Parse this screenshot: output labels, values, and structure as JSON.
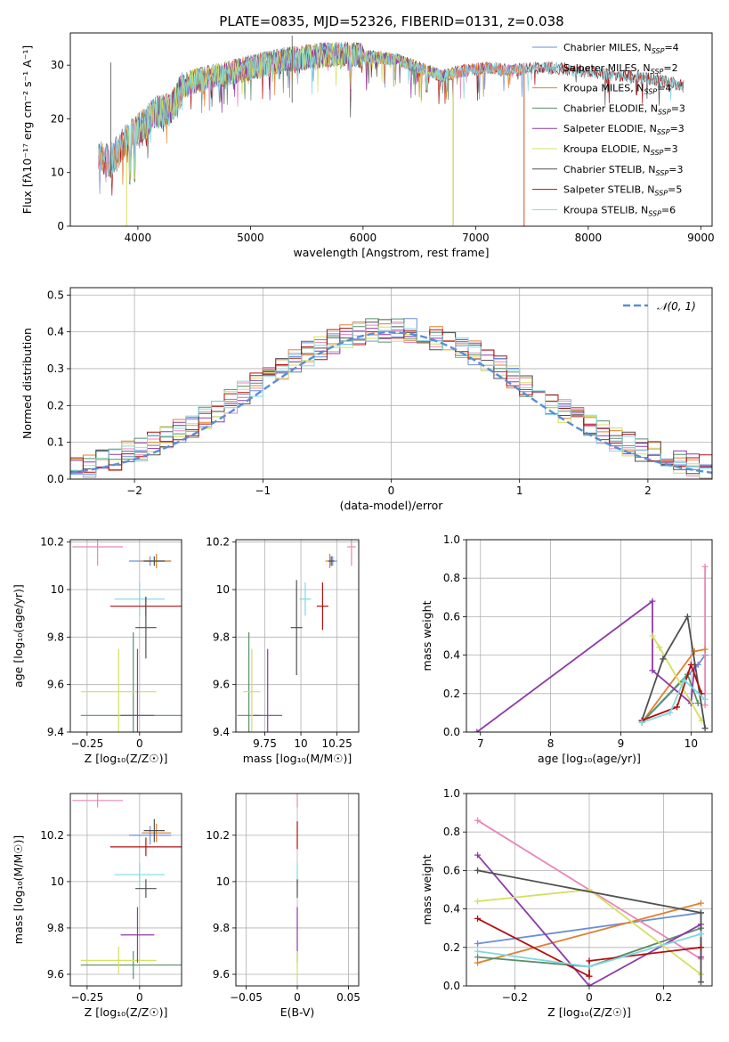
{
  "title": "PLATE=0835, MJD=52326, FIBERID=0131, z=0.038",
  "chart_data": [
    {
      "id": "spectrum",
      "type": "line",
      "xlabel": "wavelength [Angstrom, rest frame]",
      "ylabel": "Flux [fλ10⁻¹⁷ erg cm⁻² s⁻¹ A⁻¹]",
      "xlim": [
        3400,
        9100
      ],
      "ylim": [
        0,
        36
      ],
      "xticks": [
        4000,
        5000,
        6000,
        7000,
        8000,
        9000
      ],
      "yticks": [
        0,
        10,
        20,
        30
      ],
      "grid": false,
      "legend": "top-right",
      "series": [
        {
          "name": "Chabrier MILES, N_SSP=4",
          "label_main": "Chabrier MILES, N",
          "label_sub": "SSP",
          "label_end": "=4",
          "color": "#6a8fd6",
          "range": [
            3650,
            7450
          ]
        },
        {
          "name": "Salpeter MILES, N_SSP=2",
          "label_main": "Salpeter MILES, N",
          "label_sub": "SSP",
          "label_end": "=2",
          "color": "#e887b8",
          "range": [
            3650,
            7450
          ]
        },
        {
          "name": "Kroupa MILES, N_SSP=4",
          "label_main": "Kroupa MILES, N",
          "label_sub": "SSP",
          "label_end": "=4",
          "color": "#e08030",
          "range": [
            3650,
            7450
          ]
        },
        {
          "name": "Chabrier ELODIE, N_SSP=3",
          "label_main": "Chabrier ELODIE, N",
          "label_sub": "SSP",
          "label_end": "=3",
          "color": "#5a8f6a",
          "range": [
            3900,
            6800
          ]
        },
        {
          "name": "Salpeter ELODIE, N_SSP=3",
          "label_main": "Salpeter ELODIE, N",
          "label_sub": "SSP",
          "label_end": "=3",
          "color": "#8e3aa8",
          "range": [
            3900,
            6800
          ]
        },
        {
          "name": "Kroupa ELODIE, N_SSP=3",
          "label_main": "Kroupa ELODIE, N",
          "label_sub": "SSP",
          "label_end": "=3",
          "color": "#d4e060",
          "range": [
            3900,
            6800
          ]
        },
        {
          "name": "Chabrier STELIB, N_SSP=3",
          "label_main": "Chabrier STELIB, N",
          "label_sub": "SSP",
          "label_end": "=3",
          "color": "#505050",
          "range": [
            3650,
            8850
          ]
        },
        {
          "name": "Salpeter STELIB, N_SSP=5",
          "label_main": "Salpeter STELIB, N",
          "label_sub": "SSP",
          "label_end": "=5",
          "color": "#b01010",
          "range": [
            3650,
            8850
          ]
        },
        {
          "name": "Kroupa STELIB, N_SSP=6",
          "label_main": "Kroupa STELIB, N",
          "label_sub": "SSP",
          "label_end": "=6",
          "color": "#80d8e0",
          "range": [
            3650,
            8850
          ]
        }
      ],
      "continuum": [
        [
          3650,
          13
        ],
        [
          3750,
          12
        ],
        [
          3850,
          15
        ],
        [
          3950,
          17
        ],
        [
          4050,
          19
        ],
        [
          4150,
          21
        ],
        [
          4300,
          22
        ],
        [
          4400,
          26
        ],
        [
          4500,
          27
        ],
        [
          4700,
          28
        ],
        [
          4900,
          29
        ],
        [
          5100,
          30
        ],
        [
          5300,
          31
        ],
        [
          5500,
          31.5
        ],
        [
          5700,
          32
        ],
        [
          5900,
          32
        ],
        [
          6100,
          31.5
        ],
        [
          6300,
          31
        ],
        [
          6500,
          29.5
        ],
        [
          6700,
          28
        ],
        [
          6900,
          29
        ],
        [
          7100,
          29.5
        ],
        [
          7300,
          29
        ],
        [
          7500,
          29.5
        ],
        [
          7700,
          29.5
        ],
        [
          7900,
          29
        ],
        [
          8100,
          28.5
        ],
        [
          8300,
          28
        ],
        [
          8500,
          27.5
        ],
        [
          8700,
          27
        ],
        [
          8850,
          26
        ]
      ]
    },
    {
      "id": "residuals",
      "type": "histogram",
      "xlabel": "(data-model)/error",
      "ylabel": "Normed distribution",
      "xlim": [
        -2.5,
        2.5
      ],
      "ylim": [
        0,
        0.52
      ],
      "xticks": [
        -2,
        -1,
        0,
        1,
        2
      ],
      "yticks": [
        0.0,
        0.1,
        0.2,
        0.3,
        0.4,
        0.5
      ],
      "grid": true,
      "legend": "top-right",
      "reference_curve": {
        "name": "𝒩(0, 1)",
        "color": "#5b8dd6",
        "style": "dashed"
      }
    },
    {
      "id": "age-vs-Z",
      "type": "errorbar",
      "xlabel": "Z [log₁₀(Z/Z☉)]",
      "ylabel": "age  [log₁₀(age/yr)]",
      "xlim": [
        -0.33,
        0.2
      ],
      "ylim": [
        9.4,
        10.21
      ],
      "xticks": [
        -0.25,
        0.0
      ],
      "yticks": [
        9.4,
        9.6,
        9.8,
        10.0,
        10.2
      ],
      "grid": true,
      "points": [
        {
          "color": "#e887b8",
          "x": -0.2,
          "xerr": 0.12,
          "y": 10.18,
          "yerr": 0.08
        },
        {
          "color": "#6a8fd6",
          "x": 0.05,
          "xerr": 0.1,
          "y": 10.12,
          "yerr": 0.02
        },
        {
          "color": "#e08030",
          "x": 0.08,
          "xerr": 0.07,
          "y": 10.12,
          "yerr": 0.03
        },
        {
          "color": "#505050",
          "x": 0.07,
          "xerr": 0.05,
          "y": 10.12,
          "yerr": 0.02
        },
        {
          "color": "#80d8e0",
          "x": 0.0,
          "xerr": 0.12,
          "y": 9.96,
          "yerr": 0.07
        },
        {
          "color": "#b01010",
          "x": 0.03,
          "xerr": 0.17,
          "y": 9.93,
          "yerr": 0.04
        },
        {
          "color": "#505050",
          "x": 0.03,
          "xerr": 0.05,
          "y": 9.84,
          "yerr": 0.13
        },
        {
          "color": "#5a8f6a",
          "x": -0.03,
          "xerr": 0.25,
          "y": 9.47,
          "yerr": 0.35
        },
        {
          "color": "#d4e060",
          "x": -0.1,
          "xerr": 0.18,
          "y": 9.57,
          "yerr": 0.18
        },
        {
          "color": "#8e3aa8",
          "x": -0.01,
          "xerr": 0.08,
          "y": 9.47,
          "yerr": 0.28
        }
      ]
    },
    {
      "id": "age-vs-mass",
      "type": "errorbar",
      "xlabel": "mass [log₁₀(M/M☉)]",
      "ylabel": "",
      "xlim": [
        9.55,
        10.4
      ],
      "ylim": [
        9.4,
        10.21
      ],
      "xticks": [
        9.75,
        10.0,
        10.25
      ],
      "yticks": [
        9.4,
        9.6,
        9.8,
        10.0,
        10.2
      ],
      "grid": true,
      "points": [
        {
          "color": "#e887b8",
          "x": 10.35,
          "xerr": 0.03,
          "y": 10.18,
          "yerr": 0.08
        },
        {
          "color": "#6a8fd6",
          "x": 10.22,
          "xerr": 0.03,
          "y": 10.12,
          "yerr": 0.02
        },
        {
          "color": "#e08030",
          "x": 10.2,
          "xerr": 0.03,
          "y": 10.12,
          "yerr": 0.03
        },
        {
          "color": "#505050",
          "x": 10.21,
          "xerr": 0.02,
          "y": 10.12,
          "yerr": 0.02
        },
        {
          "color": "#80d8e0",
          "x": 10.03,
          "xerr": 0.04,
          "y": 9.96,
          "yerr": 0.07
        },
        {
          "color": "#b01010",
          "x": 10.15,
          "xerr": 0.04,
          "y": 9.93,
          "yerr": 0.1
        },
        {
          "color": "#505050",
          "x": 9.97,
          "xerr": 0.04,
          "y": 9.84,
          "yerr": 0.2
        },
        {
          "color": "#5a8f6a",
          "x": 9.64,
          "xerr": 0.08,
          "y": 9.47,
          "yerr": 0.35
        },
        {
          "color": "#d4e060",
          "x": 9.66,
          "xerr": 0.06,
          "y": 9.57,
          "yerr": 0.18
        },
        {
          "color": "#8e3aa8",
          "x": 9.77,
          "xerr": 0.1,
          "y": 9.47,
          "yerr": 0.28
        }
      ]
    },
    {
      "id": "weight-vs-age",
      "type": "line",
      "xlabel": "age  [log₁₀(age/yr)]",
      "ylabel": "mass weight",
      "xlim": [
        6.8,
        10.3
      ],
      "ylim": [
        0,
        1
      ],
      "xticks": [
        7,
        8,
        9,
        10
      ],
      "yticks": [
        0.0,
        0.2,
        0.4,
        0.6,
        0.8,
        1.0
      ],
      "grid": true,
      "series": [
        {
          "name": "Chabrier MILES",
          "color": "#6a8fd6",
          "x": [
            9.3,
            10.1,
            10.2
          ],
          "y": [
            0.05,
            0.35,
            0.4
          ]
        },
        {
          "name": "Salpeter MILES",
          "color": "#e887b8",
          "x": [
            10.2,
            10.2
          ],
          "y": [
            0.14,
            0.86
          ]
        },
        {
          "name": "Kroupa MILES",
          "color": "#e08030",
          "x": [
            9.3,
            10.05,
            10.2
          ],
          "y": [
            0.05,
            0.42,
            0.43
          ]
        },
        {
          "name": "Chabrier ELODIE",
          "color": "#5a8f6a",
          "x": [
            9.3,
            9.95,
            10.1
          ],
          "y": [
            0.05,
            0.3,
            0.15
          ]
        },
        {
          "name": "Salpeter ELODIE",
          "color": "#8e3aa8",
          "x": [
            6.95,
            9.45,
            9.45,
            10.0,
            10.05
          ],
          "y": [
            0.0,
            0.68,
            0.32,
            0.15,
            0.35
          ]
        },
        {
          "name": "Kroupa ELODIE",
          "color": "#d4e060",
          "x": [
            9.45,
            9.55,
            10.15
          ],
          "y": [
            0.5,
            0.44,
            0.06
          ]
        },
        {
          "name": "Chabrier STELIB",
          "color": "#505050",
          "x": [
            9.3,
            9.6,
            9.95,
            10.2
          ],
          "y": [
            0.06,
            0.38,
            0.6,
            0.02
          ]
        },
        {
          "name": "Salpeter STELIB",
          "color": "#b01010",
          "x": [
            9.3,
            9.8,
            10.0,
            10.15
          ],
          "y": [
            0.06,
            0.13,
            0.35,
            0.2
          ]
        },
        {
          "name": "Kroupa STELIB",
          "color": "#80d8e0",
          "x": [
            9.3,
            9.7,
            9.9,
            10.2
          ],
          "y": [
            0.05,
            0.1,
            0.27,
            0.17
          ]
        }
      ]
    },
    {
      "id": "mass-vs-Z",
      "type": "errorbar",
      "xlabel": "Z [log₁₀(Z/Z☉)]",
      "ylabel": "mass [log₁₀(M/M☉)]",
      "xlim": [
        -0.33,
        0.2
      ],
      "ylim": [
        9.55,
        10.38
      ],
      "xticks": [
        -0.25,
        0.0
      ],
      "yticks": [
        9.6,
        9.8,
        10.0,
        10.2
      ],
      "grid": true,
      "points": [
        {
          "color": "#e887b8",
          "x": -0.2,
          "xerr": 0.12,
          "y": 10.35,
          "yerr": 0.03
        },
        {
          "color": "#6a8fd6",
          "x": 0.05,
          "xerr": 0.1,
          "y": 10.2,
          "yerr": 0.04
        },
        {
          "color": "#e08030",
          "x": 0.08,
          "xerr": 0.07,
          "y": 10.21,
          "yerr": 0.04
        },
        {
          "color": "#505050",
          "x": 0.07,
          "xerr": 0.05,
          "y": 10.22,
          "yerr": 0.05
        },
        {
          "color": "#80d8e0",
          "x": 0.0,
          "xerr": 0.12,
          "y": 10.03,
          "yerr": 0.05
        },
        {
          "color": "#b01010",
          "x": 0.03,
          "xerr": 0.17,
          "y": 10.15,
          "yerr": 0.04
        },
        {
          "color": "#505050",
          "x": 0.03,
          "xerr": 0.05,
          "y": 9.97,
          "yerr": 0.04
        },
        {
          "color": "#5a8f6a",
          "x": -0.03,
          "xerr": 0.25,
          "y": 9.64,
          "yerr": 0.06
        },
        {
          "color": "#d4e060",
          "x": -0.1,
          "xerr": 0.18,
          "y": 9.66,
          "yerr": 0.06
        },
        {
          "color": "#8e3aa8",
          "x": -0.01,
          "xerr": 0.08,
          "y": 9.77,
          "yerr": 0.12
        }
      ]
    },
    {
      "id": "mass-vs-EBV",
      "type": "errorbar",
      "xlabel": "E(B-V)",
      "ylabel": "",
      "xlim": [
        -0.06,
        0.06
      ],
      "ylim": [
        9.55,
        10.38
      ],
      "xticks": [
        -0.05,
        0.0,
        0.05
      ],
      "yticks": [
        9.6,
        9.8,
        10.0,
        10.2
      ],
      "grid": true,
      "points": [
        {
          "color": "#e887b8",
          "x": 0.0,
          "xerr": 0,
          "y": 10.35,
          "yerr": 0.03
        },
        {
          "color": "#b01010",
          "x": 0.0,
          "xerr": 0,
          "y": 10.2,
          "yerr": 0.06
        },
        {
          "color": "#80d8e0",
          "x": 0.0,
          "xerr": 0,
          "y": 10.03,
          "yerr": 0.05
        },
        {
          "color": "#505050",
          "x": 0.0,
          "xerr": 0,
          "y": 9.97,
          "yerr": 0.04
        },
        {
          "color": "#8e3aa8",
          "x": 0.0,
          "xerr": 0,
          "y": 9.77,
          "yerr": 0.12
        },
        {
          "color": "#d4e060",
          "x": 0.0,
          "xerr": 0,
          "y": 9.64,
          "yerr": 0.06
        }
      ]
    },
    {
      "id": "weight-vs-Z",
      "type": "line",
      "xlabel": "Z [log₁₀(Z/Z☉)]",
      "ylabel": "mass weight",
      "xlim": [
        -0.33,
        0.33
      ],
      "ylim": [
        0,
        1
      ],
      "xticks": [
        -0.2,
        0.0,
        0.2
      ],
      "yticks": [
        0.0,
        0.2,
        0.4,
        0.6,
        0.8,
        1.0
      ],
      "grid": true,
      "series": [
        {
          "name": "Chabrier MILES",
          "color": "#6a8fd6",
          "x": [
            -0.3,
            0.3
          ],
          "y": [
            0.22,
            0.38
          ]
        },
        {
          "name": "Salpeter MILES",
          "color": "#e887b8",
          "x": [
            -0.3,
            0.3
          ],
          "y": [
            0.86,
            0.14
          ]
        },
        {
          "name": "Kroupa MILES",
          "color": "#e08030",
          "x": [
            -0.3,
            0.3
          ],
          "y": [
            0.12,
            0.43
          ]
        },
        {
          "name": "Chabrier ELODIE",
          "color": "#5a8f6a",
          "x": [
            -0.3,
            0.0,
            0.3
          ],
          "y": [
            0.15,
            0.1,
            0.3
          ]
        },
        {
          "name": "Salpeter ELODIE",
          "color": "#8e3aa8",
          "x": [
            -0.3,
            0.0,
            0.3,
            0.3
          ],
          "y": [
            0.68,
            0.0,
            0.32,
            0.15
          ]
        },
        {
          "name": "Kroupa ELODIE",
          "color": "#d4e060",
          "x": [
            -0.3,
            0.0,
            0.3
          ],
          "y": [
            0.44,
            0.5,
            0.06
          ]
        },
        {
          "name": "Chabrier STELIB",
          "color": "#505050",
          "x": [
            -0.3,
            0.3,
            0.3
          ],
          "y": [
            0.6,
            0.38,
            0.02
          ]
        },
        {
          "name": "Salpeter STELIB",
          "color": "#b01010",
          "x": [
            -0.3,
            0.0,
            0.0,
            0.3
          ],
          "y": [
            0.35,
            0.05,
            0.13,
            0.2
          ]
        },
        {
          "name": "Kroupa STELIB",
          "color": "#80d8e0",
          "x": [
            -0.3,
            0.0,
            0.3
          ],
          "y": [
            0.18,
            0.1,
            0.27
          ]
        }
      ]
    }
  ]
}
